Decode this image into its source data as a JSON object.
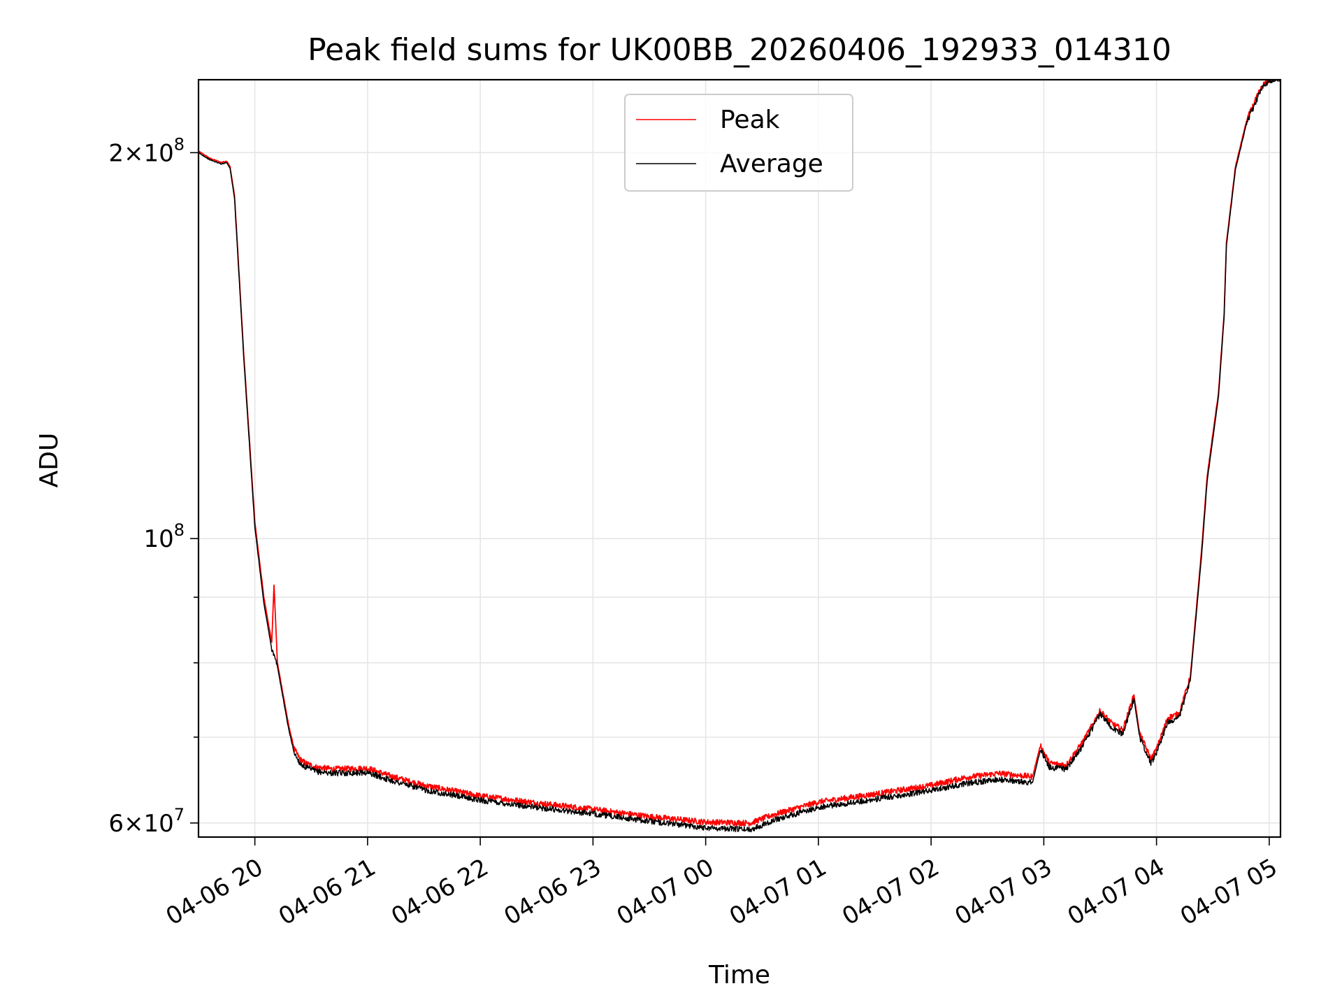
{
  "chart_data": {
    "type": "line",
    "title": "Peak field sums for UK00BB_20260406_192933_014310",
    "xlabel": "Time",
    "ylabel": "ADU",
    "yscale": "log",
    "xlim": [
      19.5,
      29.1
    ],
    "ylim": [
      58500000,
      228000000
    ],
    "grid": true,
    "legend_position": "top-center",
    "x_ticks": [
      {
        "value": 20,
        "label": "04-06 20"
      },
      {
        "value": 21,
        "label": "04-06 21"
      },
      {
        "value": 22,
        "label": "04-06 22"
      },
      {
        "value": 23,
        "label": "04-06 23"
      },
      {
        "value": 24,
        "label": "04-07 00"
      },
      {
        "value": 25,
        "label": "04-07 01"
      },
      {
        "value": 26,
        "label": "04-07 02"
      },
      {
        "value": 27,
        "label": "04-07 03"
      },
      {
        "value": 28,
        "label": "04-07 04"
      },
      {
        "value": 29,
        "label": "04-07 05"
      }
    ],
    "y_major_ticks": [
      {
        "value": 60000000,
        "base": "6×10",
        "exp": "7"
      },
      {
        "value": 100000000,
        "base": "10",
        "exp": "8"
      },
      {
        "value": 200000000,
        "base": "2×10",
        "exp": "8"
      }
    ],
    "y_minor_ticks": [
      70000000,
      80000000,
      90000000
    ],
    "series": [
      {
        "name": "Peak",
        "color": "#ff0000",
        "x": [
          19.5,
          19.6,
          19.7,
          19.75,
          19.78,
          19.82,
          19.9,
          20.0,
          20.08,
          20.15,
          20.17,
          20.18,
          20.2,
          20.3,
          20.35,
          20.4,
          20.45,
          20.55,
          20.7,
          21.0,
          21.2,
          21.5,
          22.0,
          22.5,
          23.0,
          23.5,
          24.0,
          24.4,
          24.6,
          25.0,
          25.5,
          26.0,
          26.3,
          26.6,
          26.9,
          26.97,
          27.05,
          27.2,
          27.35,
          27.5,
          27.6,
          27.7,
          27.8,
          27.85,
          27.95,
          28.0,
          28.1,
          28.2,
          28.3,
          28.4,
          28.45,
          28.55,
          28.6,
          28.62,
          28.7,
          28.8,
          28.9,
          28.95,
          29.0,
          29.1
        ],
        "y": [
          200500000,
          198000000,
          196500000,
          197000000,
          195000000,
          185000000,
          140000000,
          103000000,
          90000000,
          83000000,
          92000000,
          88000000,
          80000000,
          71500000,
          68500000,
          67300000,
          66800000,
          66300000,
          66100000,
          66200000,
          65300000,
          64200000,
          63000000,
          62200000,
          61500000,
          60700000,
          60100000,
          60000000,
          60900000,
          62300000,
          63200000,
          64200000,
          65100000,
          65600000,
          65200000,
          69000000,
          66800000,
          66600000,
          69500000,
          73400000,
          71800000,
          70900000,
          75500000,
          70500000,
          67300000,
          68500000,
          72500000,
          73000000,
          78000000,
          98000000,
          112000000,
          130000000,
          150000000,
          170000000,
          195000000,
          212000000,
          222000000,
          226000000,
          228000000,
          229000000
        ]
      },
      {
        "name": "Average",
        "color": "#000000",
        "x": [
          19.5,
          19.6,
          19.7,
          19.75,
          19.78,
          19.82,
          19.9,
          20.0,
          20.08,
          20.15,
          20.2,
          20.3,
          20.35,
          20.4,
          20.45,
          20.55,
          20.7,
          21.0,
          21.2,
          21.5,
          22.0,
          22.5,
          23.0,
          23.5,
          24.0,
          24.4,
          24.6,
          25.0,
          25.5,
          26.0,
          26.3,
          26.6,
          26.9,
          26.97,
          27.05,
          27.2,
          27.35,
          27.5,
          27.6,
          27.7,
          27.8,
          27.85,
          27.95,
          28.0,
          28.1,
          28.2,
          28.3,
          28.4,
          28.45,
          28.55,
          28.6,
          28.62,
          28.7,
          28.8,
          28.9,
          28.95,
          29.0,
          29.1
        ],
        "y": [
          200000000,
          197500000,
          196000000,
          196500000,
          194500000,
          184000000,
          139000000,
          102000000,
          89000000,
          82000000,
          79500000,
          71000000,
          68000000,
          66800000,
          66300000,
          65800000,
          65600000,
          65700000,
          64800000,
          63700000,
          62500000,
          61700000,
          61000000,
          60200000,
          59500000,
          59300000,
          60300000,
          61700000,
          62600000,
          63600000,
          64400000,
          64900000,
          64500000,
          68500000,
          66300000,
          66100000,
          69000000,
          73000000,
          71300000,
          70400000,
          75000000,
          70000000,
          66800000,
          68000000,
          72000000,
          72500000,
          77500000,
          97000000,
          111000000,
          129000000,
          149000000,
          169000000,
          194000000,
          211000000,
          221000000,
          225500000,
          227500000,
          228500000
        ]
      }
    ]
  }
}
